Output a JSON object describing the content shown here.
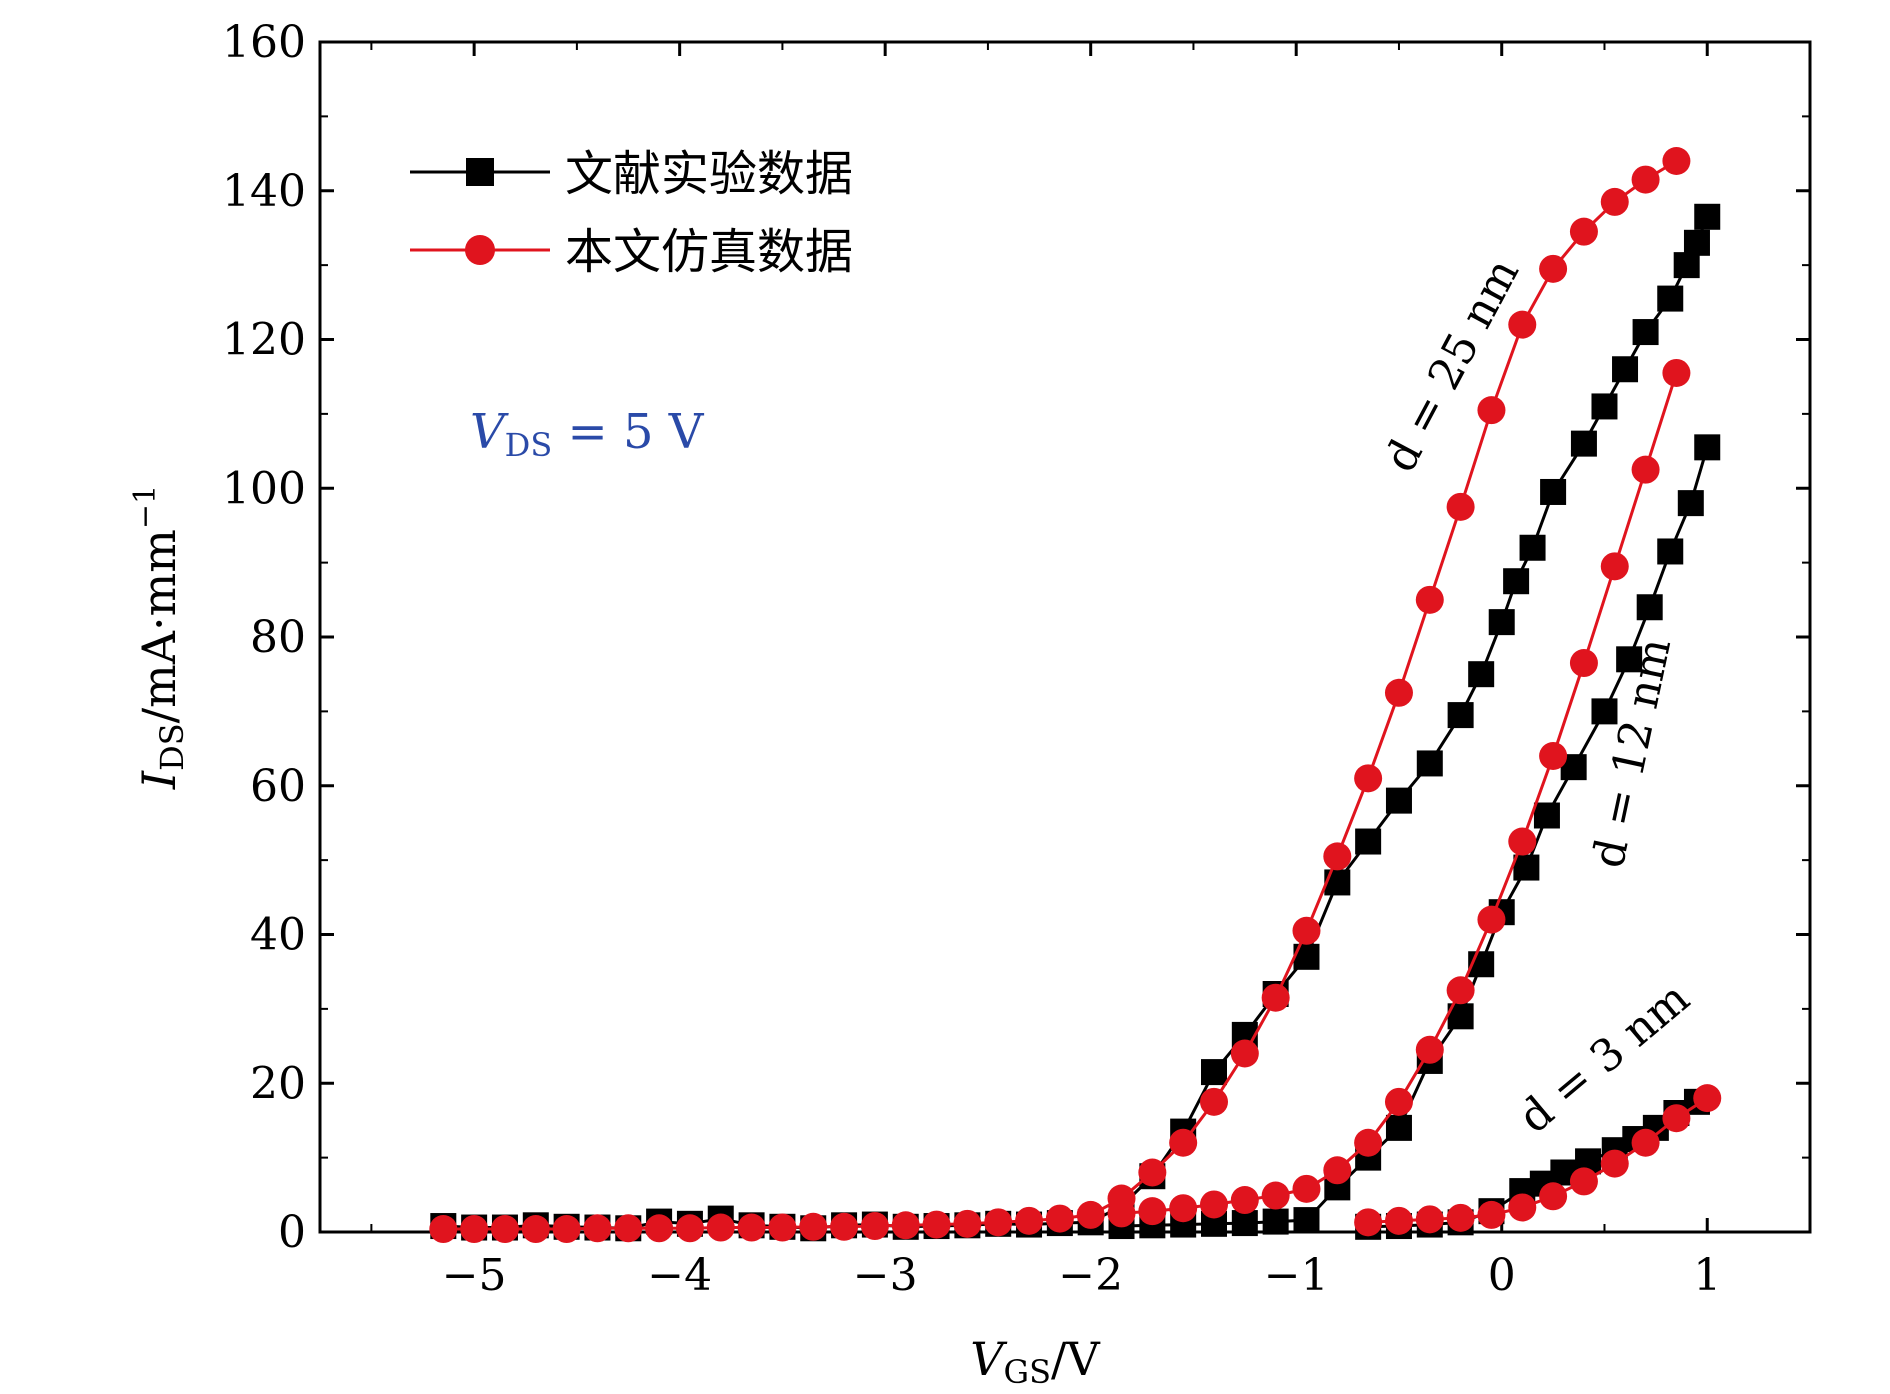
{
  "chart_data": {
    "type": "line",
    "title": "",
    "xlabel": {
      "main": "V",
      "sub": "GS",
      "unit": "/V"
    },
    "ylabel": {
      "main": "I",
      "sub": "DS",
      "unit": "/mA·mm",
      "sup": "−1"
    },
    "xlim": [
      -5.75,
      1.5
    ],
    "ylim": [
      0,
      160
    ],
    "xticks": [
      {
        "value": -5,
        "label": "−5"
      },
      {
        "value": -4,
        "label": "−4"
      },
      {
        "value": -3,
        "label": "−3"
      },
      {
        "value": -2,
        "label": "−2"
      },
      {
        "value": -1,
        "label": "−1"
      },
      {
        "value": 0,
        "label": "0"
      },
      {
        "value": 1,
        "label": "1"
      }
    ],
    "yticks": [
      {
        "value": 0,
        "label": "0"
      },
      {
        "value": 20,
        "label": "20"
      },
      {
        "value": 40,
        "label": "40"
      },
      {
        "value": 60,
        "label": "60"
      },
      {
        "value": 80,
        "label": "80"
      },
      {
        "value": 100,
        "label": "100"
      },
      {
        "value": 120,
        "label": "120"
      },
      {
        "value": 140,
        "label": "140"
      },
      {
        "value": 160,
        "label": "160"
      }
    ],
    "legend": [
      {
        "label": "文献实验数据",
        "color": "#000000",
        "marker": "square"
      },
      {
        "label": "本文仿真数据",
        "color": "#e0141e",
        "marker": "circle"
      }
    ],
    "legend_position": "top-left",
    "condition": {
      "main": "V",
      "sub": "DS",
      "rest": " = 5 V"
    },
    "annotations": [
      {
        "text": "d = 25 nm"
      },
      {
        "text": "d = 12 nm"
      },
      {
        "text": "d = 3 nm"
      }
    ],
    "series": [
      {
        "name": "文献实验数据 d = 25 nm",
        "color": "#000000",
        "marker": "square",
        "points": [
          [
            -5.15,
            0.8
          ],
          [
            -5.0,
            0.6
          ],
          [
            -4.85,
            0.6
          ],
          [
            -4.7,
            0.9
          ],
          [
            -4.55,
            0.7
          ],
          [
            -4.4,
            0.6
          ],
          [
            -4.25,
            0.5
          ],
          [
            -4.1,
            1.4
          ],
          [
            -3.95,
            1.1
          ],
          [
            -3.8,
            1.8
          ],
          [
            -3.65,
            0.9
          ],
          [
            -3.5,
            0.7
          ],
          [
            -3.35,
            0.5
          ],
          [
            -3.2,
            0.9
          ],
          [
            -3.05,
            1.0
          ],
          [
            -2.9,
            0.7
          ],
          [
            -2.75,
            0.8
          ],
          [
            -2.6,
            0.9
          ],
          [
            -2.45,
            1.1
          ],
          [
            -2.3,
            1.0
          ],
          [
            -2.15,
            1.2
          ],
          [
            -2.0,
            1.3
          ],
          [
            -1.85,
            3.5
          ],
          [
            -1.7,
            7.5
          ],
          [
            -1.55,
            13.5
          ],
          [
            -1.4,
            21.5
          ],
          [
            -1.25,
            26.5
          ],
          [
            -1.1,
            32
          ],
          [
            -0.95,
            37
          ],
          [
            -0.8,
            47
          ],
          [
            -0.65,
            52.5
          ],
          [
            -0.5,
            58
          ],
          [
            -0.35,
            63
          ],
          [
            -0.2,
            69.5
          ],
          [
            -0.1,
            75
          ],
          [
            0.0,
            82
          ],
          [
            0.07,
            87.5
          ],
          [
            0.15,
            92
          ],
          [
            0.25,
            99.5
          ],
          [
            0.4,
            106
          ],
          [
            0.5,
            111
          ],
          [
            0.6,
            116
          ],
          [
            0.7,
            121
          ],
          [
            0.82,
            125.5
          ],
          [
            0.9,
            130
          ],
          [
            0.95,
            133
          ],
          [
            1.0,
            136.5
          ]
        ]
      },
      {
        "name": "本文仿真数据 d = 25 nm",
        "color": "#e0141e",
        "marker": "circle",
        "points": [
          [
            -5.15,
            0.4
          ],
          [
            -5.0,
            0.4
          ],
          [
            -4.85,
            0.4
          ],
          [
            -4.7,
            0.4
          ],
          [
            -4.55,
            0.4
          ],
          [
            -4.4,
            0.5
          ],
          [
            -4.25,
            0.5
          ],
          [
            -4.1,
            0.5
          ],
          [
            -3.95,
            0.5
          ],
          [
            -3.8,
            0.6
          ],
          [
            -3.65,
            0.6
          ],
          [
            -3.5,
            0.6
          ],
          [
            -3.35,
            0.7
          ],
          [
            -3.2,
            0.7
          ],
          [
            -3.05,
            0.8
          ],
          [
            -2.9,
            0.9
          ],
          [
            -2.75,
            1.0
          ],
          [
            -2.6,
            1.1
          ],
          [
            -2.45,
            1.3
          ],
          [
            -2.3,
            1.5
          ],
          [
            -2.15,
            1.8
          ],
          [
            -2.0,
            2.3
          ],
          [
            -1.85,
            4.5
          ],
          [
            -1.7,
            8
          ],
          [
            -1.55,
            12
          ],
          [
            -1.4,
            17.5
          ],
          [
            -1.25,
            24
          ],
          [
            -1.1,
            31.5
          ],
          [
            -0.95,
            40.5
          ],
          [
            -0.8,
            50.5
          ],
          [
            -0.65,
            61
          ],
          [
            -0.5,
            72.5
          ],
          [
            -0.35,
            85
          ],
          [
            -0.2,
            97.5
          ],
          [
            -0.05,
            110.5
          ],
          [
            0.1,
            122
          ],
          [
            0.25,
            129.5
          ],
          [
            0.4,
            134.5
          ],
          [
            0.55,
            138.5
          ],
          [
            0.7,
            141.5
          ],
          [
            0.85,
            144
          ]
        ]
      },
      {
        "name": "文献实验数据 d = 12 nm",
        "color": "#000000",
        "marker": "square",
        "points": [
          [
            -1.85,
            0.8
          ],
          [
            -1.7,
            0.9
          ],
          [
            -1.55,
            1.0
          ],
          [
            -1.4,
            1.1
          ],
          [
            -1.25,
            1.2
          ],
          [
            -1.1,
            1.4
          ],
          [
            -0.95,
            1.6
          ],
          [
            -0.8,
            6
          ],
          [
            -0.65,
            10
          ],
          [
            -0.5,
            14
          ],
          [
            -0.35,
            23
          ],
          [
            -0.2,
            29
          ],
          [
            -0.1,
            36
          ],
          [
            0.0,
            43
          ],
          [
            0.12,
            49
          ],
          [
            0.22,
            56
          ],
          [
            0.35,
            62.5
          ],
          [
            0.5,
            70
          ],
          [
            0.62,
            77
          ],
          [
            0.72,
            84
          ],
          [
            0.82,
            91.5
          ],
          [
            0.92,
            98
          ],
          [
            1.0,
            105.5
          ]
        ]
      },
      {
        "name": "本文仿真数据 d = 12 nm",
        "color": "#e0141e",
        "marker": "circle",
        "points": [
          [
            -1.85,
            2.5
          ],
          [
            -1.7,
            2.8
          ],
          [
            -1.55,
            3.2
          ],
          [
            -1.4,
            3.7
          ],
          [
            -1.25,
            4.3
          ],
          [
            -1.1,
            4.9
          ],
          [
            -0.95,
            5.8
          ],
          [
            -0.8,
            8.3
          ],
          [
            -0.65,
            12
          ],
          [
            -0.5,
            17.5
          ],
          [
            -0.35,
            24.5
          ],
          [
            -0.2,
            32.5
          ],
          [
            -0.05,
            42
          ],
          [
            0.1,
            52.5
          ],
          [
            0.25,
            64
          ],
          [
            0.4,
            76.5
          ],
          [
            0.55,
            89.5
          ],
          [
            0.7,
            102.5
          ],
          [
            0.85,
            115.5
          ]
        ]
      },
      {
        "name": "文献实验数据 d = 3 nm",
        "color": "#000000",
        "marker": "square",
        "points": [
          [
            -0.65,
            0.7
          ],
          [
            -0.5,
            0.8
          ],
          [
            -0.35,
            1.0
          ],
          [
            -0.2,
            1.3
          ],
          [
            -0.05,
            2.8
          ],
          [
            0.1,
            5.5
          ],
          [
            0.2,
            6.5
          ],
          [
            0.3,
            8
          ],
          [
            0.42,
            9.5
          ],
          [
            0.55,
            11
          ],
          [
            0.65,
            12.5
          ],
          [
            0.75,
            14
          ],
          [
            0.85,
            16
          ],
          [
            0.95,
            17.5
          ]
        ]
      },
      {
        "name": "本文仿真数据 d = 3 nm",
        "color": "#e0141e",
        "marker": "circle",
        "points": [
          [
            -0.65,
            1.3
          ],
          [
            -0.5,
            1.5
          ],
          [
            -0.35,
            1.7
          ],
          [
            -0.2,
            1.9
          ],
          [
            -0.05,
            2.3
          ],
          [
            0.1,
            3.3
          ],
          [
            0.25,
            4.8
          ],
          [
            0.4,
            6.8
          ],
          [
            0.55,
            9.2
          ],
          [
            0.7,
            12
          ],
          [
            0.85,
            15.3
          ],
          [
            1.0,
            18
          ]
        ]
      }
    ]
  }
}
